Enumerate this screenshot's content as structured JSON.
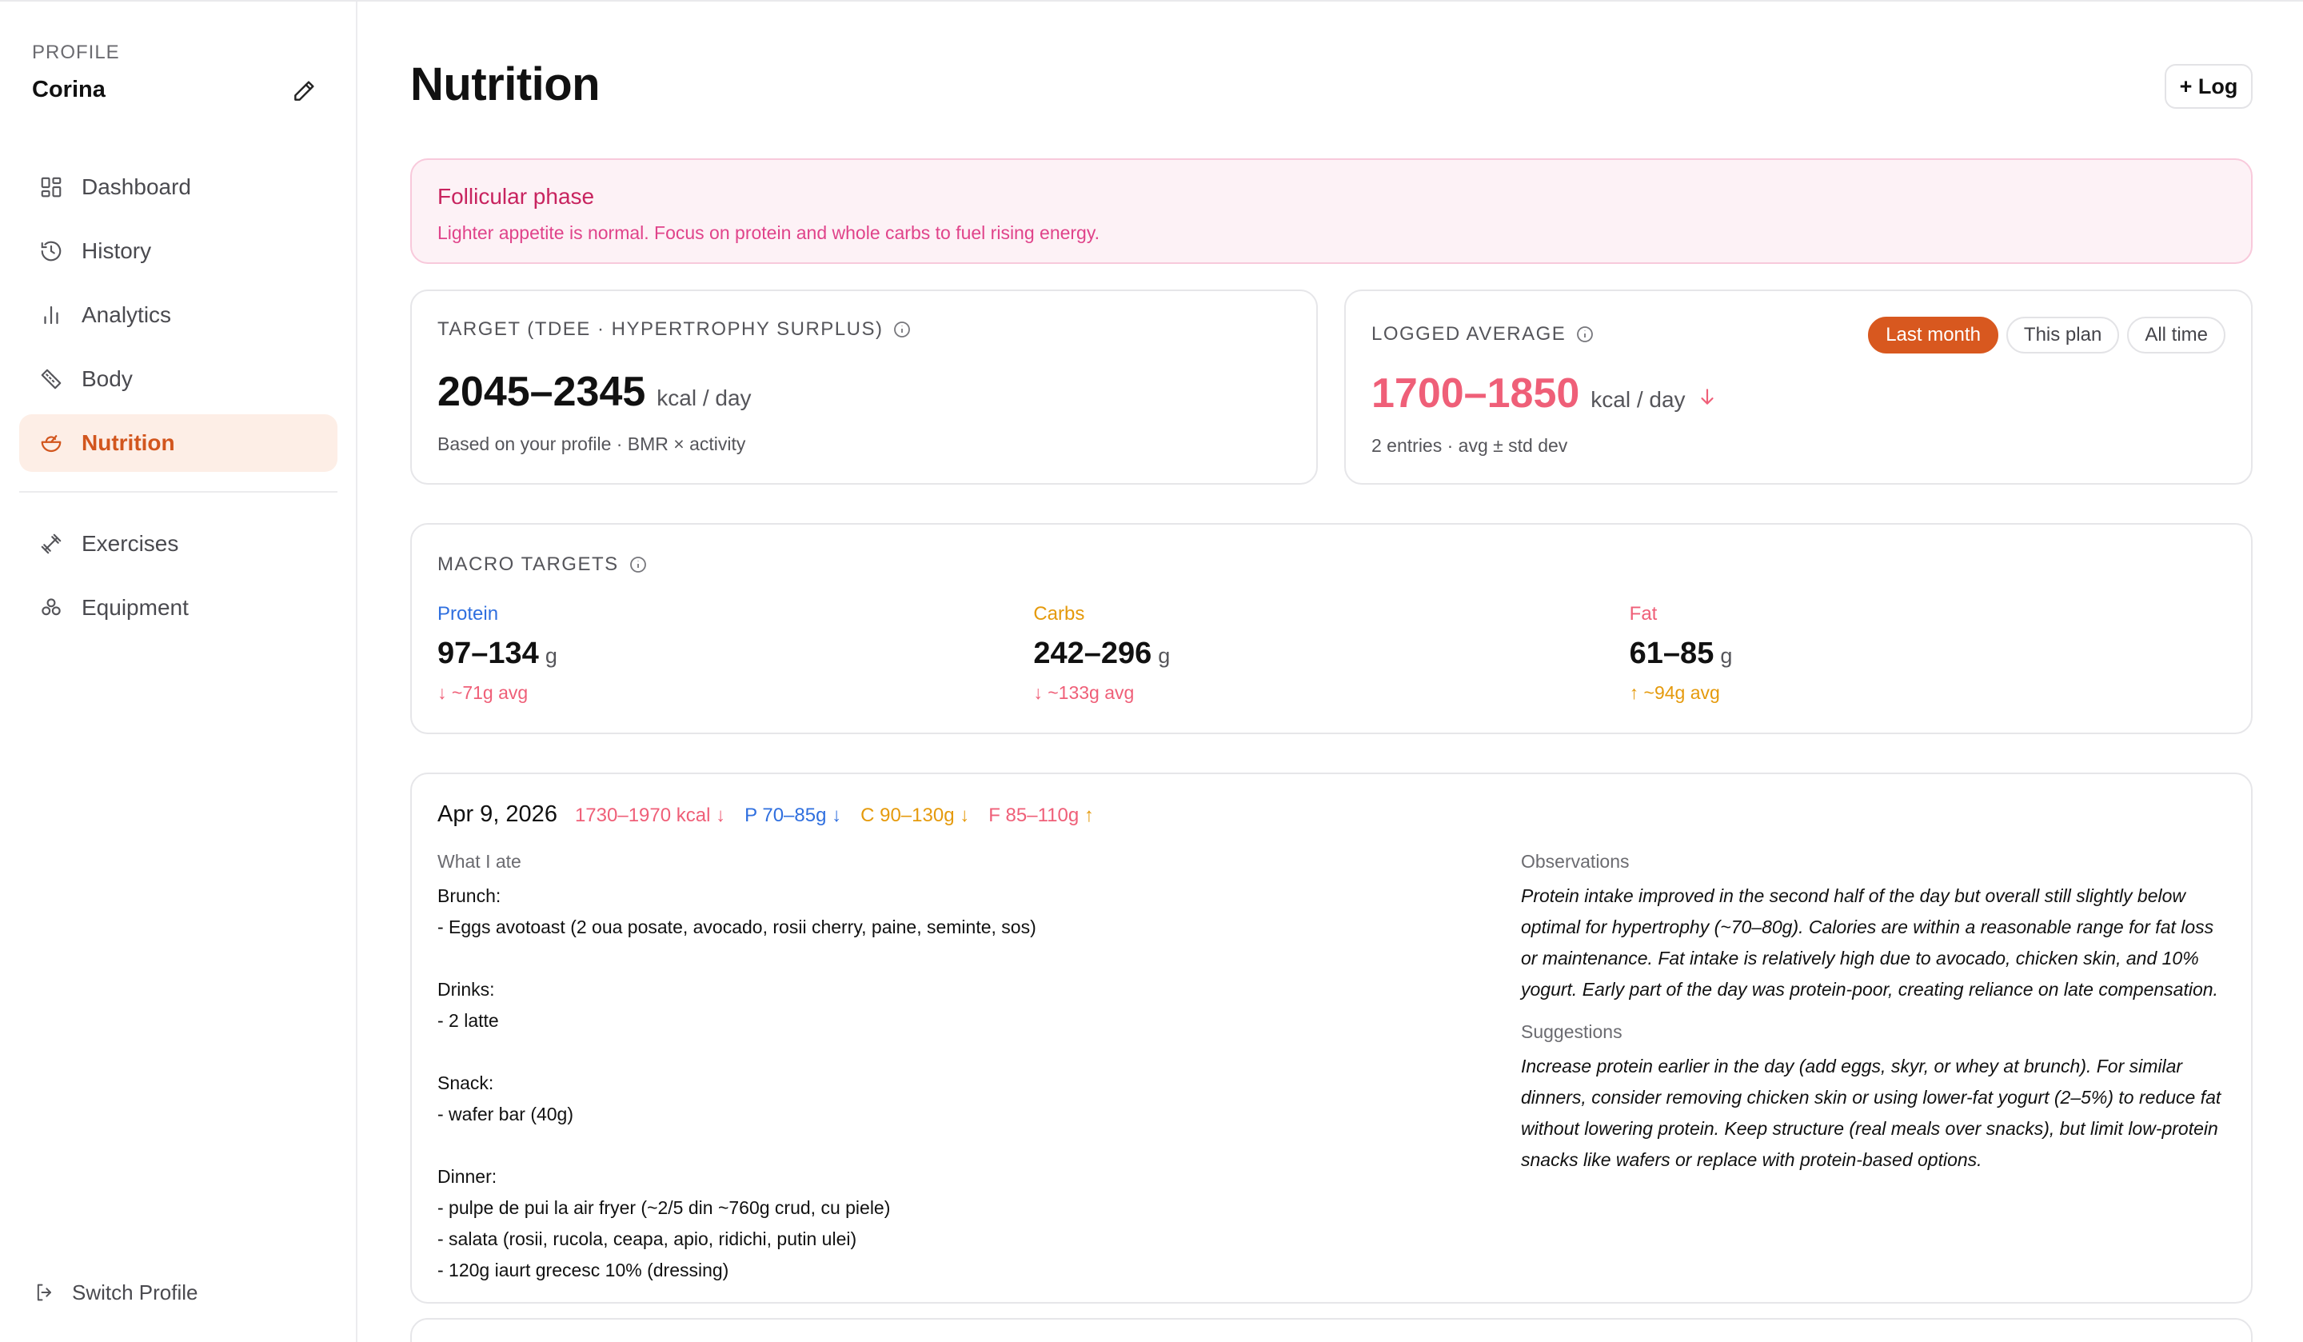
{
  "sidebar": {
    "profile_label": "PROFILE",
    "profile_name": "Corina",
    "nav": [
      {
        "label": "Dashboard",
        "icon": "grid-icon"
      },
      {
        "label": "History",
        "icon": "history-icon"
      },
      {
        "label": "Analytics",
        "icon": "bar-chart-icon"
      },
      {
        "label": "Body",
        "icon": "ruler-icon"
      },
      {
        "label": "Nutrition",
        "icon": "salad-icon",
        "active": true
      }
    ],
    "nav2": [
      {
        "label": "Exercises",
        "icon": "dumbbell-icon"
      },
      {
        "label": "Equipment",
        "icon": "weights-icon"
      }
    ],
    "switch_label": "Switch Profile"
  },
  "header": {
    "title": "Nutrition",
    "log_label": "+ Log"
  },
  "phase": {
    "title": "Follicular phase",
    "text": "Lighter appetite is normal. Focus on protein and whole carbs to fuel rising energy."
  },
  "target": {
    "label": "TARGET (TDEE · HYPERTROPHY SURPLUS)",
    "value": "2045–2345",
    "unit": "kcal / day",
    "note": "Based on your profile · BMR × activity"
  },
  "logged": {
    "label": "LOGGED AVERAGE",
    "value": "1700–1850",
    "unit": "kcal / day",
    "note": "2 entries · avg ± std dev",
    "filters": [
      "Last month",
      "This plan",
      "All time"
    ],
    "active_filter": "Last month"
  },
  "macros": {
    "label": "MACRO TARGETS",
    "items": [
      {
        "name": "Protein",
        "value": "97–134",
        "unit": "g",
        "avg": "~71g avg",
        "direction": "down",
        "color": "#2f6fdf",
        "avg_color": "#ef5f78"
      },
      {
        "name": "Carbs",
        "value": "242–296",
        "unit": "g",
        "avg": "~133g avg",
        "direction": "down",
        "color": "#e59a0c",
        "avg_color": "#ef5f78"
      },
      {
        "name": "Fat",
        "value": "61–85",
        "unit": "g",
        "avg": "~94g avg",
        "direction": "up",
        "color": "#ef5f78",
        "avg_color": "#e59a0c"
      }
    ]
  },
  "entry": {
    "date": "Apr 9, 2026",
    "stats": [
      {
        "text": "1730–1970 kcal",
        "color": "#ef5f78",
        "dir": "down"
      },
      {
        "text": "P 70–85g",
        "color": "#2f6fdf",
        "dir": "down"
      },
      {
        "text": "C 90–130g",
        "color": "#e59a0c",
        "dir": "down"
      },
      {
        "text": "F 85–110g",
        "color": "#ef5f78",
        "dir": "up"
      }
    ],
    "ate_label": "What I ate",
    "food_lines": [
      "Brunch:",
      "- Eggs avotoast (2 oua posate, avocado, rosii cherry, paine, seminte, sos)",
      "",
      "Drinks:",
      "- 2 latte",
      "",
      "Snack:",
      "- wafer bar (40g)",
      "",
      "Dinner:",
      "- pulpe de pui la air fryer (~2/5 din ~760g crud, cu piele)",
      "- salata (rosii, rucola, ceapa, apio, ridichi, putin ulei)",
      "- 120g iaurt grecesc 10% (dressing)"
    ],
    "obs_label": "Observations",
    "observations": "Protein intake improved in the second half of the day but overall still slightly below optimal for hypertrophy (~70–80g). Calories are within a reasonable range for fat loss or maintenance. Fat intake is relatively high due to avocado, chicken skin, and 10% yogurt. Early part of the day was protein-poor, creating reliance on late compensation.",
    "sugg_label": "Suggestions",
    "suggestions": "Increase protein earlier in the day (add eggs, skyr, or whey at brunch). For similar dinners, consider removing chicken skin or using lower-fat yogurt (2–5%) to reduce fat without lowering protein. Keep structure (real meals over snacks), but limit low-protein snacks like wafers or replace with protein-based options."
  },
  "colors": {
    "accent": "#d8581f",
    "protein": "#2f6fdf",
    "carbs": "#e59a0c",
    "fat": "#ef5f78",
    "phase": "#c8245f"
  }
}
